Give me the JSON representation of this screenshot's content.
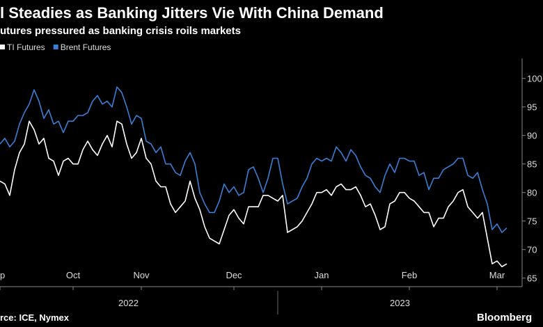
{
  "chart_data": {
    "type": "line",
    "title": "l Steadies as Banking Jitters Vie With China Demand",
    "subtitle": "utures pressured as banking crisis roils markets",
    "source": "rce: ICE, Nymex",
    "brand": "Bloomberg",
    "categories": [
      "p",
      null,
      null,
      null,
      null,
      null,
      null,
      null,
      null,
      null,
      null,
      null,
      null,
      null,
      null,
      "Oct",
      null,
      null,
      null,
      null,
      null,
      null,
      null,
      null,
      null,
      null,
      null,
      null,
      null,
      "Nov",
      null,
      null,
      null,
      null,
      null,
      null,
      null,
      null,
      null,
      null,
      null,
      null,
      null,
      null,
      null,
      null,
      null,
      null,
      "Dec",
      null,
      null,
      null,
      null,
      null,
      null,
      null,
      null,
      null,
      null,
      null,
      null,
      null,
      null,
      null,
      null,
      null,
      "Jan",
      null,
      null,
      null,
      null,
      null,
      null,
      null,
      null,
      null,
      null,
      null,
      null,
      null,
      null,
      null,
      null,
      null,
      "Feb",
      null,
      null,
      null,
      null,
      null,
      null,
      null,
      null,
      null,
      null,
      null,
      null,
      null,
      null,
      null,
      null,
      null,
      "Mar",
      null,
      null
    ],
    "years": [
      "2022",
      "2023"
    ],
    "series": [
      {
        "name": "TI Futures",
        "color": "#ffffff",
        "values": [
          82,
          81.5,
          79.5,
          84,
          87,
          88.5,
          92.5,
          91,
          88.5,
          89.5,
          86,
          85.5,
          83,
          85.5,
          86,
          85,
          85,
          87.5,
          89,
          87.5,
          86.5,
          88.5,
          90,
          88,
          92.5,
          92,
          88.5,
          86,
          87,
          89.5,
          86,
          85,
          82,
          81,
          81,
          78,
          76.5,
          77.5,
          78.5,
          82,
          79,
          77,
          74,
          72,
          71.5,
          71,
          73.5,
          76,
          77,
          75.5,
          74.5,
          77.5,
          77.5,
          77.5,
          79.5,
          79.5,
          79,
          78.5,
          79.5,
          73,
          73.5,
          74,
          75,
          76.5,
          78,
          80,
          80,
          80.5,
          79.5,
          81,
          81.5,
          80.5,
          80.5,
          81,
          79.5,
          77.5,
          78,
          76,
          73.5,
          74,
          78,
          78.5,
          80,
          80,
          79,
          78.5,
          77.5,
          76.5,
          76.5,
          74,
          75.5,
          75.5,
          77.5,
          78.5,
          80,
          80.5,
          77.5,
          76.5,
          75.5,
          76.5,
          72,
          67.5,
          68,
          67,
          67.5
        ]
      },
      {
        "name": "Brent Futures",
        "color": "#3a7fd5",
        "values": [
          88.5,
          89.5,
          88,
          89,
          92,
          94,
          95.5,
          98,
          96,
          93,
          94.5,
          92,
          92.5,
          90.5,
          92.5,
          92.5,
          93.5,
          93.5,
          94,
          96,
          97,
          95.5,
          96,
          95,
          98.5,
          97.5,
          95,
          92,
          93.5,
          93,
          89,
          88.5,
          87,
          88,
          85,
          85,
          83.5,
          83,
          85.5,
          87,
          85,
          80,
          78,
          76.5,
          76.5,
          78.5,
          81.5,
          80,
          81,
          79.5,
          80,
          84,
          84.5,
          82.5,
          80,
          82.5,
          86,
          86,
          81.5,
          78,
          78.5,
          79,
          81,
          82.5,
          85,
          86,
          85.5,
          86,
          85.5,
          88,
          87,
          85.5,
          87.5,
          86.5,
          84.5,
          83,
          82.5,
          81,
          80,
          83,
          85,
          83.5,
          86,
          86,
          85.5,
          85.5,
          83,
          83.5,
          80.5,
          82.5,
          82.5,
          84,
          84.5,
          85,
          86,
          86,
          83,
          82.5,
          83.5,
          80.5,
          78,
          73.5,
          74.5,
          73,
          73.8
        ]
      }
    ],
    "ylim": [
      63.5,
      103.5
    ],
    "yticks": [
      65,
      70,
      75,
      80,
      85,
      90,
      95,
      100
    ]
  }
}
